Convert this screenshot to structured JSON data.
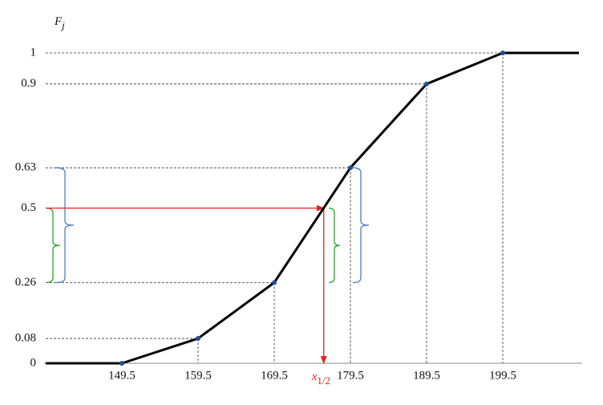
{
  "chart_data": {
    "type": "line",
    "y_label": "F",
    "y_label_subscript": "j",
    "median_label": "x",
    "median_label_subscript": "1/2",
    "x": [
      139.5,
      149.5,
      159.5,
      169.5,
      179.5,
      189.5,
      199.5,
      209.5
    ],
    "values": [
      0,
      0,
      0.08,
      0.26,
      0.63,
      0.9,
      1,
      1
    ],
    "color": "#000000",
    "marker_color": "#1f4e9a",
    "median": 176,
    "median_level": 0.5,
    "median_color": "#e8201a",
    "xlim": [
      139.5,
      209.5
    ],
    "ylim": [
      0,
      1
    ],
    "xticks": [
      149.5,
      159.5,
      169.5,
      179.5,
      189.5,
      199.5
    ],
    "yticks": [
      0,
      0.08,
      0.26,
      0.5,
      0.63,
      0.9,
      1
    ],
    "grid": "dashed"
  }
}
